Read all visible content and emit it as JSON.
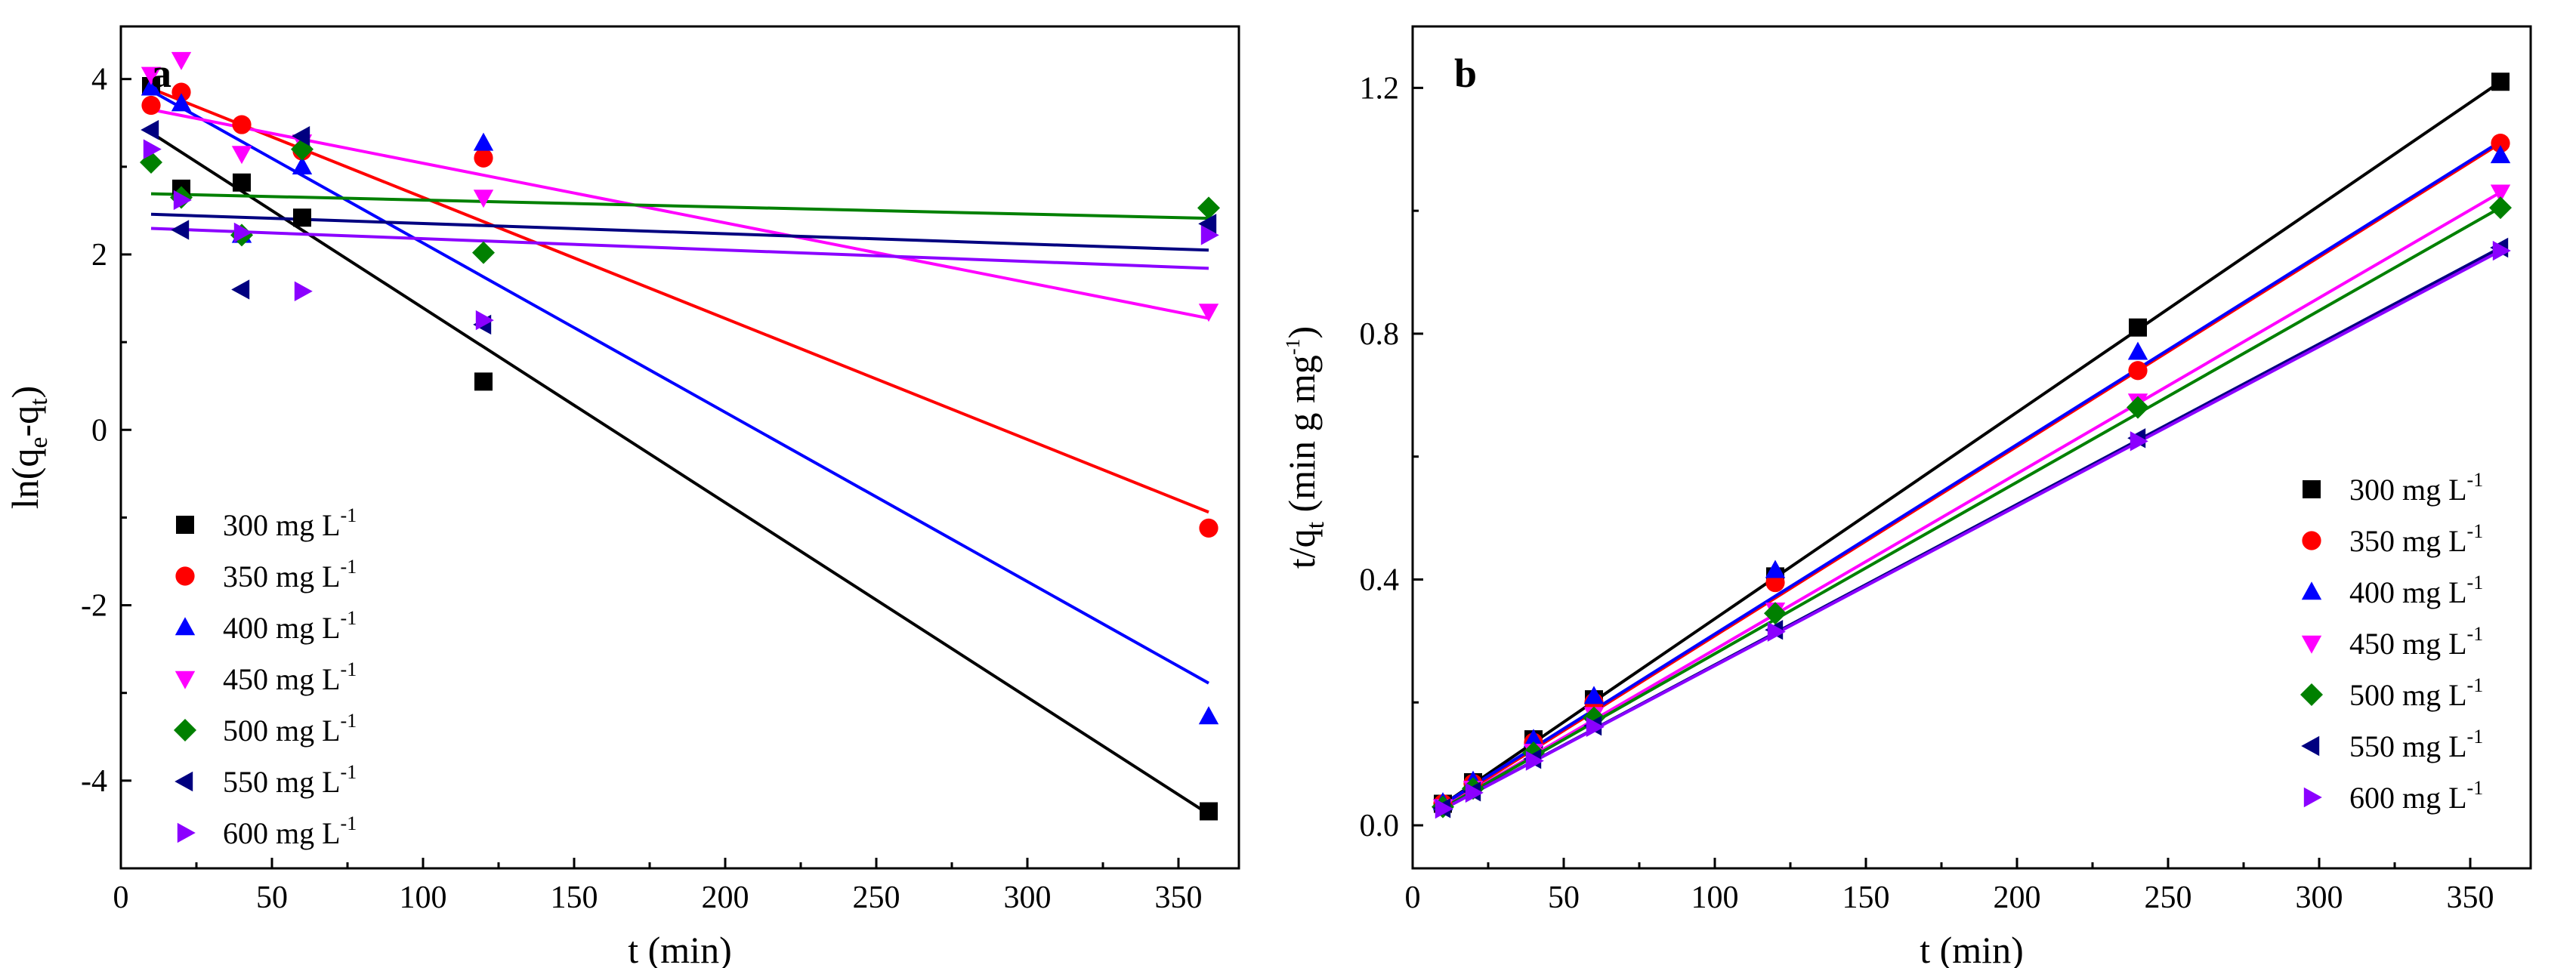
{
  "chart_data": [
    {
      "type": "scatter",
      "panel": "a",
      "title": "",
      "xlabel": "t (min)",
      "ylabel": "ln(qe-qt)",
      "ylabel_parts": {
        "main": "ln(q",
        "sub1": "e",
        "mid": "-q",
        "sub2": "t",
        "end": ")"
      },
      "xlim": [
        0,
        370
      ],
      "ylim": [
        -5,
        4.6
      ],
      "xticks": [
        0,
        50,
        100,
        150,
        200,
        250,
        300,
        350
      ],
      "yticks": [
        -4,
        -2,
        0,
        2,
        4
      ],
      "legend_position": "bottom-left",
      "x": [
        10,
        20,
        40,
        60,
        120,
        360
      ],
      "series": [
        {
          "name": "300 mg L-1",
          "label": "300 mg L",
          "unit_exp": "-1",
          "color": "#000000",
          "marker": "square",
          "values": [
            3.92,
            2.75,
            2.82,
            2.42,
            0.55,
            -4.35
          ],
          "fit": {
            "intercept": 3.61,
            "slope": -0.0222
          }
        },
        {
          "name": "350 mg L-1",
          "label": "350 mg L",
          "unit_exp": "-1",
          "color": "#ff0000",
          "marker": "circle",
          "values": [
            3.7,
            3.85,
            3.48,
            3.18,
            3.1,
            -1.12
          ],
          "fit": {
            "intercept": 4.03,
            "slope": -0.0138
          }
        },
        {
          "name": "400 mg L-1",
          "label": "400 mg L",
          "unit_exp": "-1",
          "color": "#0000ff",
          "marker": "triangle-up",
          "values": [
            3.9,
            3.72,
            2.22,
            3.0,
            3.27,
            -3.27
          ],
          "fit": {
            "intercept": 4.06,
            "slope": -0.0193
          }
        },
        {
          "name": "450 mg L-1",
          "label": "450 mg L",
          "unit_exp": "-1",
          "color": "#ff00ff",
          "marker": "triangle-down",
          "values": [
            4.05,
            4.22,
            3.15,
            3.28,
            2.65,
            1.35
          ],
          "fit": {
            "intercept": 3.72,
            "slope": -0.0068
          }
        },
        {
          "name": "500 mg L-1",
          "label": "500 mg L",
          "unit_exp": "-1",
          "color": "#008000",
          "marker": "diamond",
          "values": [
            3.05,
            2.65,
            2.22,
            3.2,
            2.02,
            2.53
          ],
          "fit": {
            "intercept": 2.7,
            "slope": -0.0008
          }
        },
        {
          "name": "550 mg L-1",
          "label": "550 mg L",
          "unit_exp": "-1",
          "color": "#000080",
          "marker": "triangle-left",
          "values": [
            3.42,
            2.28,
            1.6,
            3.35,
            1.2,
            2.35
          ],
          "fit": {
            "intercept": 2.47,
            "slope": -0.00117
          }
        },
        {
          "name": "600 mg L-1",
          "label": "600 mg L",
          "unit_exp": "-1",
          "color": "#8b00ff",
          "marker": "triangle-right",
          "values": [
            3.2,
            2.62,
            2.25,
            1.58,
            1.25,
            2.22
          ],
          "fit": {
            "intercept": 2.31,
            "slope": -0.0013
          }
        }
      ]
    },
    {
      "type": "scatter",
      "panel": "b",
      "title": "",
      "xlabel": "t (min)",
      "ylabel": "t/qt (min g mg-1)",
      "ylabel_parts": {
        "main": "t/q",
        "sub1": "t",
        "rest": " (min g mg",
        "sup": "-1",
        "end": ")"
      },
      "xlim": [
        0,
        370
      ],
      "ylim": [
        -0.07,
        1.3
      ],
      "xticks": [
        0,
        50,
        100,
        150,
        200,
        250,
        300,
        350
      ],
      "yticks": [
        0.0,
        0.4,
        0.8,
        1.2
      ],
      "ytick_labels": [
        "0.0",
        "0.4",
        "0.8",
        "1.2"
      ],
      "legend_position": "bottom-right",
      "x": [
        10,
        20,
        40,
        60,
        120,
        240,
        360
      ],
      "series": [
        {
          "name": "300 mg L-1",
          "label": "300 mg L",
          "unit_exp": "-1",
          "color": "#000000",
          "marker": "square",
          "values": [
            0.035,
            0.07,
            0.14,
            0.205,
            0.405,
            0.81,
            1.21
          ],
          "fit": {
            "intercept": 0.0,
            "slope": 0.003361
          }
        },
        {
          "name": "350 mg L-1",
          "label": "350 mg L",
          "unit_exp": "-1",
          "color": "#ff0000",
          "marker": "circle",
          "values": [
            0.035,
            0.068,
            0.135,
            0.2,
            0.395,
            0.74,
            1.11
          ],
          "fit": {
            "intercept": 0.0,
            "slope": 0.003083
          }
        },
        {
          "name": "400 mg L-1",
          "label": "400 mg L",
          "unit_exp": "-1",
          "color": "#0000ff",
          "marker": "triangle-up",
          "values": [
            0.037,
            0.072,
            0.14,
            0.21,
            0.415,
            0.77,
            1.09
          ],
          "fit": {
            "intercept": 0.003,
            "slope": 0.003083
          }
        },
        {
          "name": "450 mg L-1",
          "label": "450 mg L",
          "unit_exp": "-1",
          "color": "#ff00ff",
          "marker": "triangle-down",
          "values": [
            0.03,
            0.06,
            0.12,
            0.18,
            0.35,
            0.69,
            1.03
          ],
          "fit": {
            "intercept": 0.0,
            "slope": 0.002861
          }
        },
        {
          "name": "500 mg L-1",
          "label": "500 mg L",
          "unit_exp": "-1",
          "color": "#008000",
          "marker": "diamond",
          "values": [
            0.03,
            0.06,
            0.118,
            0.175,
            0.345,
            0.68,
            1.005
          ],
          "fit": {
            "intercept": 0.0,
            "slope": 0.002792
          }
        },
        {
          "name": "550 mg L-1",
          "label": "550 mg L",
          "unit_exp": "-1",
          "color": "#000080",
          "marker": "triangle-left",
          "values": [
            0.028,
            0.055,
            0.108,
            0.162,
            0.318,
            0.63,
            0.94
          ],
          "fit": {
            "intercept": 0.0,
            "slope": 0.002611
          }
        },
        {
          "name": "600 mg L-1",
          "label": "600 mg L",
          "unit_exp": "-1",
          "color": "#8b00ff",
          "marker": "triangle-right",
          "values": [
            0.027,
            0.053,
            0.105,
            0.16,
            0.315,
            0.625,
            0.935
          ],
          "fit": {
            "intercept": 0.0,
            "slope": 0.002597
          }
        }
      ]
    }
  ]
}
